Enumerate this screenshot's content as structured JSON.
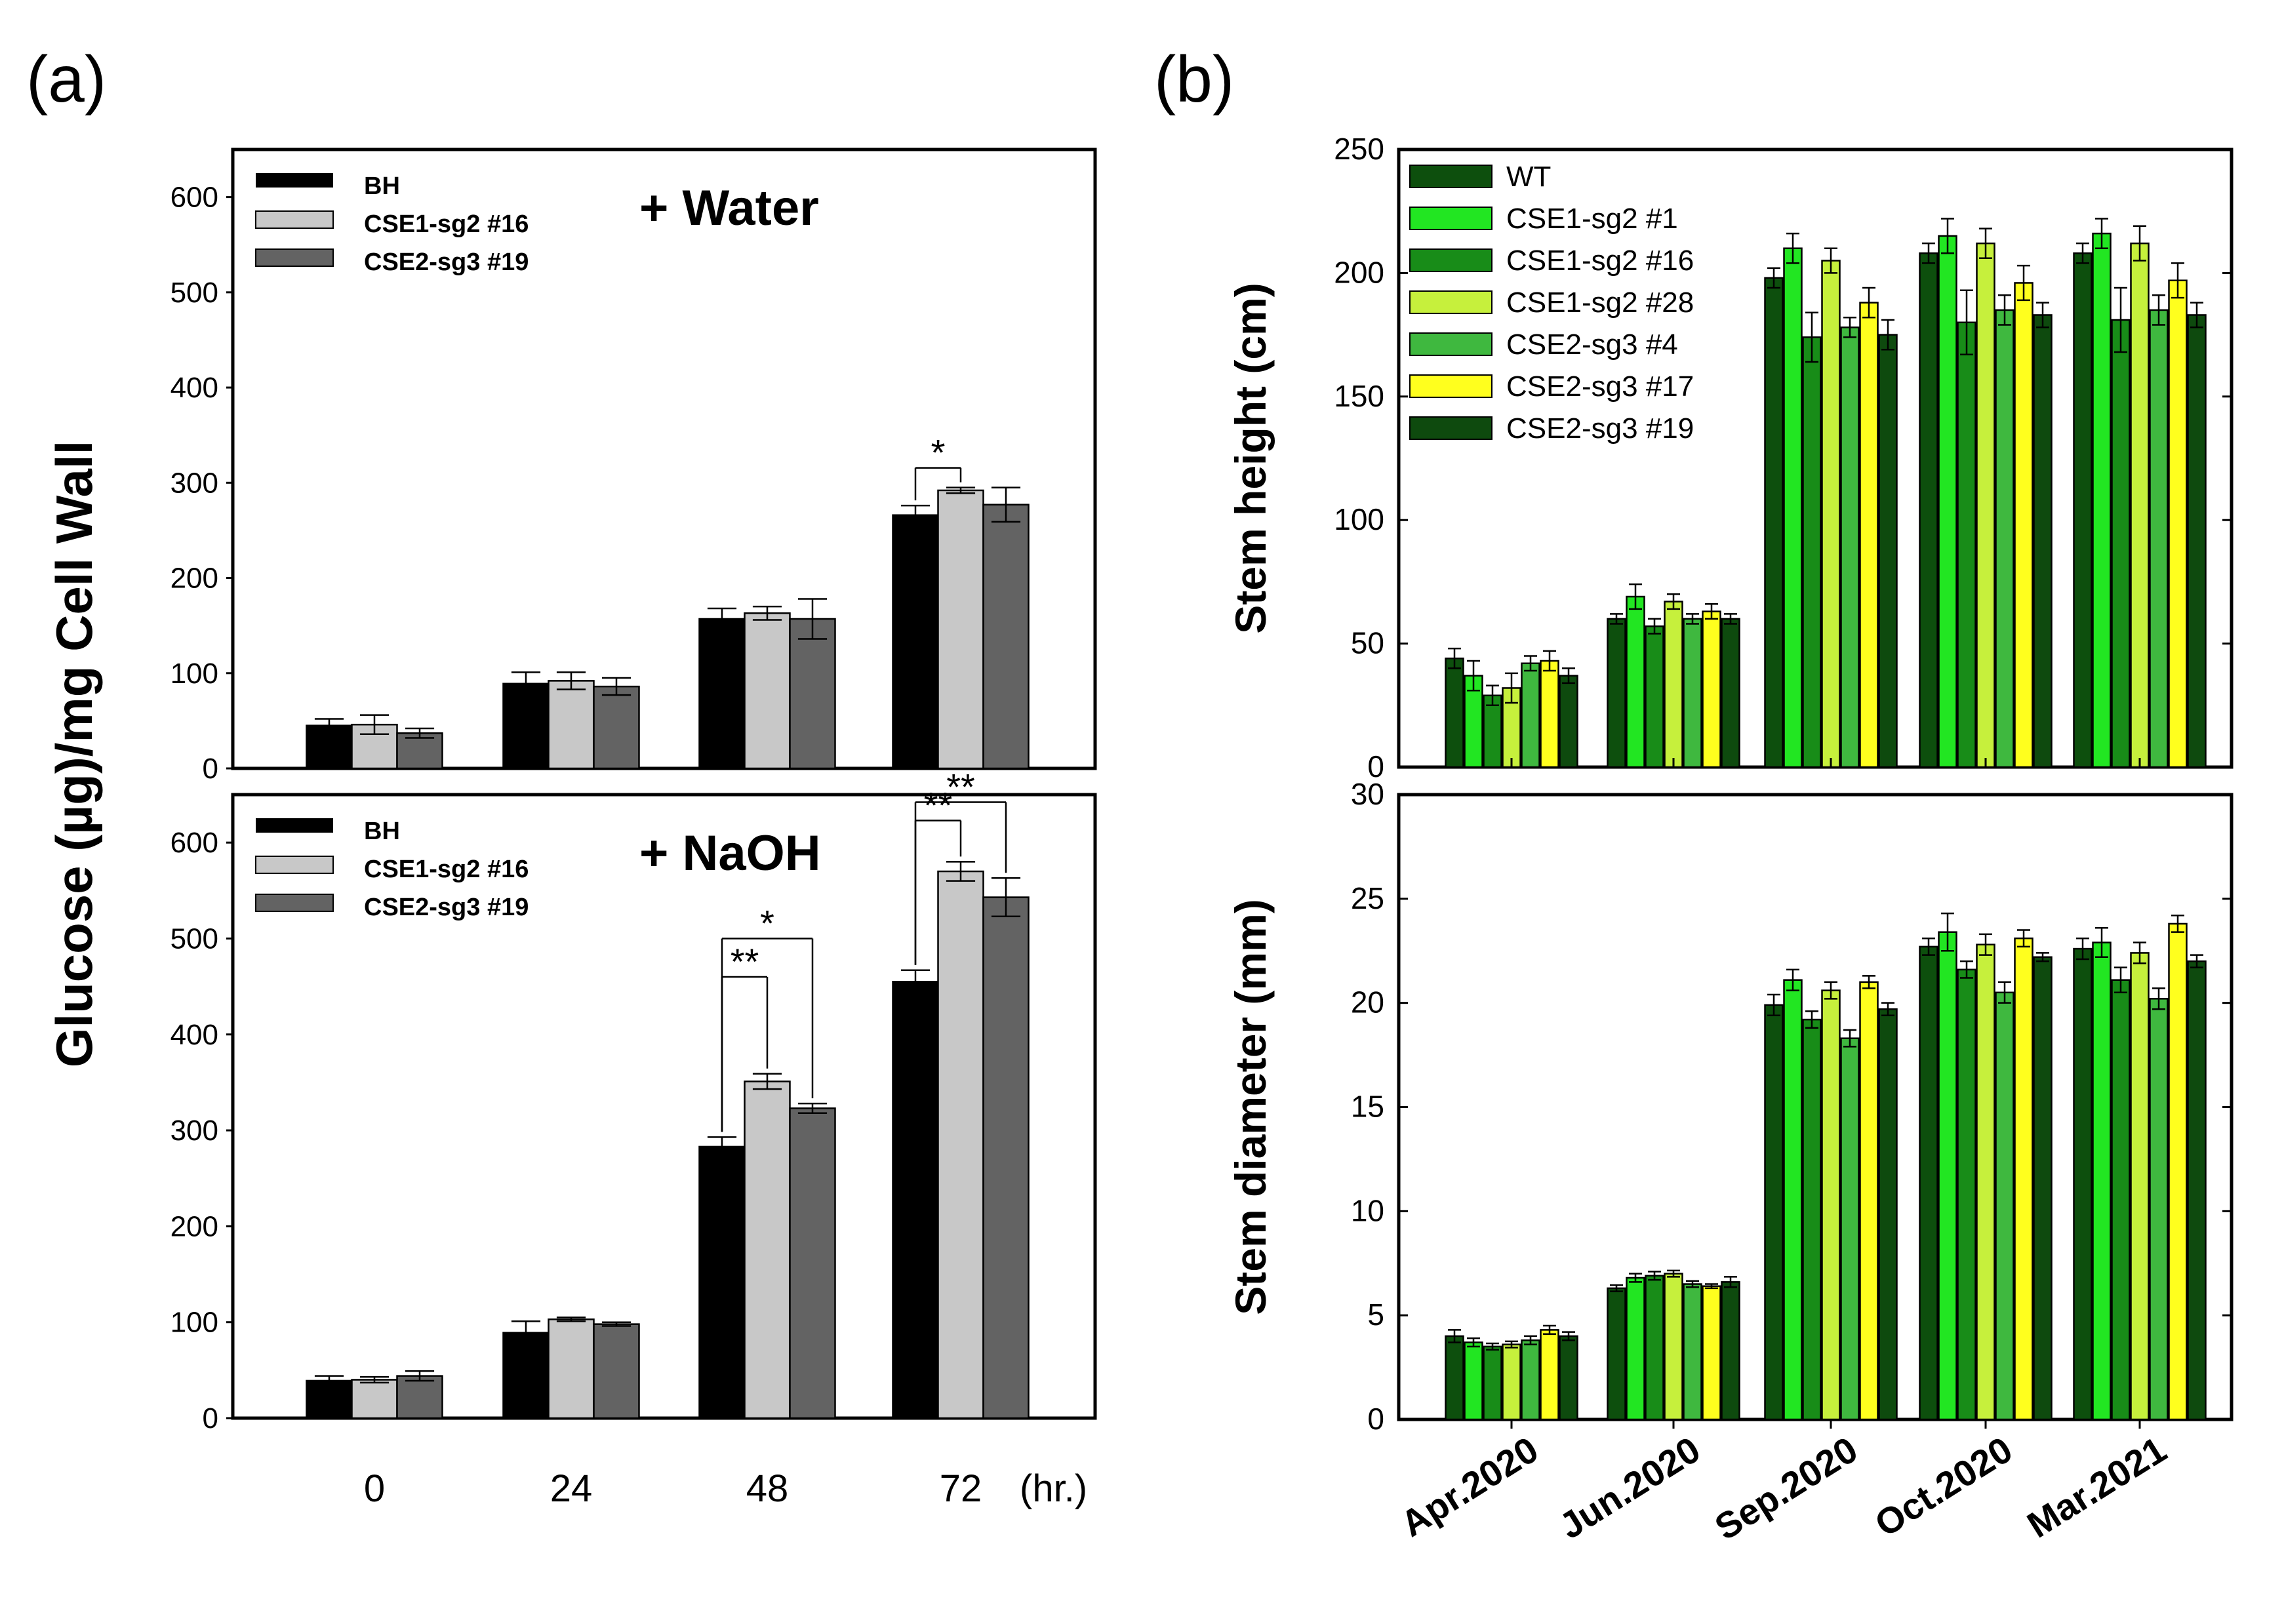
{
  "panels": {
    "a_label": "(a)",
    "b_label": "(b)"
  },
  "shared": {
    "a_ylabel": "Glucose (µg)/mg Cell Wall",
    "a_categories": [
      "0",
      "24",
      "48",
      "72"
    ],
    "a_unit": "(hr.)",
    "b_categories": [
      "Apr.2020",
      "Jun.2020",
      "Sep.2020",
      "Oct.2020",
      "Mar.2021"
    ]
  },
  "colors": {
    "BH": "#000000",
    "CSE1-sg2 #16 (a)": "#c8c8c8",
    "CSE2-sg3 #19 (a)": "#636363",
    "WT": "#0d4f0d",
    "CSE1-sg2 #1": "#22e622",
    "CSE1-sg2 #16 (b)": "#188c18",
    "CSE1-sg2 #28": "#c6f03c",
    "CSE2-sg3 #4": "#3fb83f",
    "CSE2-sg3 #17": "#ffff1e",
    "CSE2-sg3 #19 (b)": "#0e4a0e"
  },
  "chart_data": [
    {
      "id": "a_water",
      "type": "bar",
      "title": "+ Water",
      "xlabel": "",
      "ylabel": "Glucose (µg)/mg Cell Wall",
      "ylim": [
        0,
        650
      ],
      "yticks": [
        0,
        100,
        200,
        300,
        400,
        500,
        600
      ],
      "categories": [
        "0",
        "24",
        "48",
        "72"
      ],
      "series": [
        {
          "name": "BH",
          "values": [
            45,
            89,
            157,
            266
          ],
          "errors": [
            7,
            12,
            11,
            10
          ]
        },
        {
          "name": "CSE1-sg2 #16",
          "values": [
            46,
            92,
            163,
            292
          ],
          "errors": [
            10,
            9,
            7,
            3
          ]
        },
        {
          "name": "CSE2-sg3 #19",
          "values": [
            37,
            86,
            157,
            277
          ],
          "errors": [
            5,
            9,
            21,
            18
          ]
        }
      ],
      "annotations": [
        {
          "text": "*",
          "category": "72",
          "from": "BH",
          "to": "CSE1-sg2 #16"
        }
      ]
    },
    {
      "id": "a_naoh",
      "type": "bar",
      "title": "+ NaOH",
      "xlabel": "",
      "ylabel": "Glucose (µg)/mg Cell Wall",
      "ylim": [
        0,
        650
      ],
      "yticks": [
        0,
        100,
        200,
        300,
        400,
        500,
        600
      ],
      "categories": [
        "0",
        "24",
        "48",
        "72"
      ],
      "series": [
        {
          "name": "BH",
          "values": [
            39,
            89,
            283,
            455
          ],
          "errors": [
            5,
            12,
            10,
            12
          ]
        },
        {
          "name": "CSE1-sg2 #16",
          "values": [
            40,
            103,
            351,
            570
          ],
          "errors": [
            3,
            2,
            8,
            10
          ]
        },
        {
          "name": "CSE2-sg3 #19",
          "values": [
            44,
            98,
            323,
            543
          ],
          "errors": [
            5,
            2,
            5,
            20
          ]
        }
      ],
      "annotations": [
        {
          "text": "**",
          "category": "48",
          "from": "BH",
          "to": "CSE1-sg2 #16"
        },
        {
          "text": "*",
          "category": "48",
          "from": "BH",
          "to": "CSE2-sg3 #19"
        },
        {
          "text": "**",
          "category": "72",
          "from": "BH",
          "to": "CSE1-sg2 #16"
        },
        {
          "text": "**",
          "category": "72",
          "from": "BH",
          "to": "CSE2-sg3 #19"
        }
      ]
    },
    {
      "id": "b_height",
      "type": "bar",
      "title": "",
      "xlabel": "",
      "ylabel": "Stem height (cm)",
      "ylim": [
        0,
        250
      ],
      "yticks": [
        0,
        50,
        100,
        150,
        200,
        250
      ],
      "categories": [
        "Apr.2020",
        "Jun.2020",
        "Sep.2020",
        "Oct.2020",
        "Mar.2021"
      ],
      "series": [
        {
          "name": "WT",
          "values": [
            44,
            60,
            198,
            208,
            208
          ],
          "errors": [
            4,
            2,
            4,
            4,
            4
          ]
        },
        {
          "name": "CSE1-sg2 #1",
          "values": [
            37,
            69,
            210,
            215,
            216
          ],
          "errors": [
            6,
            5,
            6,
            7,
            6
          ]
        },
        {
          "name": "CSE1-sg2 #16",
          "values": [
            29,
            57,
            174,
            180,
            181
          ],
          "errors": [
            4,
            3,
            10,
            13,
            13
          ]
        },
        {
          "name": "CSE1-sg2 #28",
          "values": [
            32,
            67,
            205,
            212,
            212
          ],
          "errors": [
            6,
            3,
            5,
            6,
            7
          ]
        },
        {
          "name": "CSE2-sg3 #4",
          "values": [
            42,
            60,
            178,
            185,
            185
          ],
          "errors": [
            3,
            2,
            4,
            6,
            6
          ]
        },
        {
          "name": "CSE2-sg3 #17",
          "values": [
            43,
            63,
            188,
            196,
            197
          ],
          "errors": [
            4,
            3,
            6,
            7,
            7
          ]
        },
        {
          "name": "CSE2-sg3 #19",
          "values": [
            37,
            60,
            175,
            183,
            183
          ],
          "errors": [
            3,
            2,
            6,
            5,
            5
          ]
        }
      ]
    },
    {
      "id": "b_diameter",
      "type": "bar",
      "title": "",
      "xlabel": "",
      "ylabel": "Stem diameter (mm)",
      "ylim": [
        0,
        30
      ],
      "yticks": [
        0,
        5,
        10,
        15,
        20,
        25,
        30
      ],
      "categories": [
        "Apr.2020",
        "Jun.2020",
        "Sep.2020",
        "Oct.2020",
        "Mar.2021"
      ],
      "series": [
        {
          "name": "WT",
          "values": [
            4.0,
            6.3,
            19.9,
            22.7,
            22.6
          ],
          "errors": [
            0.3,
            0.15,
            0.5,
            0.4,
            0.5
          ]
        },
        {
          "name": "CSE1-sg2 #1",
          "values": [
            3.7,
            6.8,
            21.1,
            23.4,
            22.9
          ],
          "errors": [
            0.2,
            0.2,
            0.5,
            0.9,
            0.7
          ]
        },
        {
          "name": "CSE1-sg2 #16",
          "values": [
            3.5,
            6.9,
            19.2,
            21.6,
            21.1
          ],
          "errors": [
            0.15,
            0.2,
            0.4,
            0.4,
            0.6
          ]
        },
        {
          "name": "CSE1-sg2 #28",
          "values": [
            3.6,
            7.0,
            20.6,
            22.8,
            22.4
          ],
          "errors": [
            0.15,
            0.15,
            0.4,
            0.5,
            0.5
          ]
        },
        {
          "name": "CSE2-sg3 #4",
          "values": [
            3.8,
            6.5,
            18.3,
            20.5,
            20.2
          ],
          "errors": [
            0.2,
            0.15,
            0.4,
            0.5,
            0.5
          ]
        },
        {
          "name": "CSE2-sg3 #17",
          "values": [
            4.3,
            6.4,
            21.0,
            23.1,
            23.8
          ],
          "errors": [
            0.2,
            0.1,
            0.3,
            0.4,
            0.4
          ]
        },
        {
          "name": "CSE2-sg3 #19",
          "values": [
            4.0,
            6.6,
            19.7,
            22.2,
            22.0
          ],
          "errors": [
            0.2,
            0.25,
            0.3,
            0.2,
            0.3
          ]
        }
      ]
    }
  ]
}
